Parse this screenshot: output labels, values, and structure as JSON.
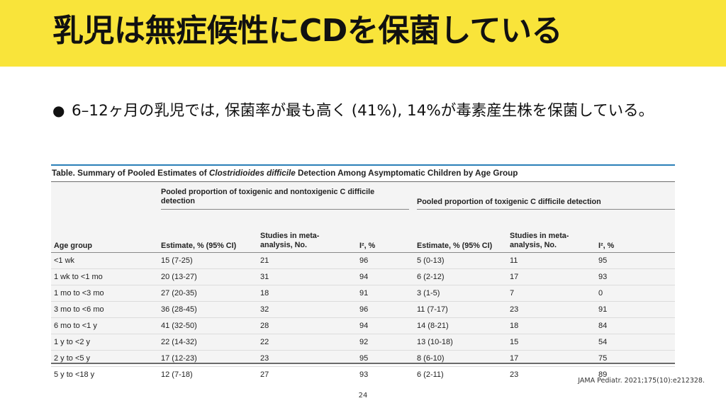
{
  "slide": {
    "title": "乳児は無症候性にCDを保菌している",
    "bullet_symbol": "●",
    "bullet_text": "6–12ヶ月の乳児では, 保菌率が最も高く (41%), 14%が毒素産生株を保菌している。",
    "citation": "JAMA Pediatr. 2021;175(10):e212328.",
    "page_number": "24",
    "colors": {
      "title_bar": "#f9e43a",
      "table_accent": "#2a7fb8",
      "table_bg": "#f4f4f4"
    }
  },
  "table": {
    "caption_prefix": "Table. Summary of Pooled Estimates of ",
    "caption_italic": "Clostridioides difficile",
    "caption_suffix": " Detection Among Asymptomatic Children by Age Group",
    "group1_header": "Pooled proportion of toxigenic and nontoxigenic C difficile detection",
    "group2_header": "Pooled proportion of toxigenic C difficile detection",
    "col_age": "Age group",
    "col_estimate": "Estimate, % (95% CI)",
    "col_studies": "Studies in meta-analysis, No.",
    "col_i2": "I², %",
    "rows": [
      {
        "age": "<1 wk",
        "est1": "15 (7-25)",
        "studies1": "21",
        "i2_1": "96",
        "est2": "5 (0-13)",
        "studies2": "11",
        "i2_2": "95"
      },
      {
        "age": "1 wk to <1 mo",
        "est1": "20 (13-27)",
        "studies1": "31",
        "i2_1": "94",
        "est2": "6 (2-12)",
        "studies2": "17",
        "i2_2": "93"
      },
      {
        "age": "1 mo to <3 mo",
        "est1": "27 (20-35)",
        "studies1": "18",
        "i2_1": "91",
        "est2": "3 (1-5)",
        "studies2": "7",
        "i2_2": "0"
      },
      {
        "age": "3 mo to <6 mo",
        "est1": "36 (28-45)",
        "studies1": "32",
        "i2_1": "96",
        "est2": "11 (7-17)",
        "studies2": "23",
        "i2_2": "91"
      },
      {
        "age": "6 mo to <1 y",
        "est1": "41 (32-50)",
        "studies1": "28",
        "i2_1": "94",
        "est2": "14 (8-21)",
        "studies2": "18",
        "i2_2": "84"
      },
      {
        "age": "1 y to <2 y",
        "est1": "22 (14-32)",
        "studies1": "22",
        "i2_1": "92",
        "est2": "13 (10-18)",
        "studies2": "15",
        "i2_2": "54"
      },
      {
        "age": "2 y to <5 y",
        "est1": "17 (12-23)",
        "studies1": "23",
        "i2_1": "95",
        "est2": "8 (6-10)",
        "studies2": "17",
        "i2_2": "75"
      },
      {
        "age": "5 y to <18 y",
        "est1": "12 (7-18)",
        "studies1": "27",
        "i2_1": "93",
        "est2": "6 (2-11)",
        "studies2": "23",
        "i2_2": "89"
      }
    ]
  }
}
